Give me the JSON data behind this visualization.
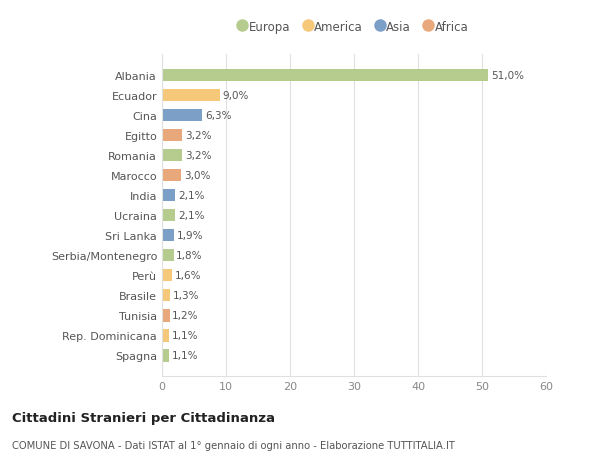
{
  "categories": [
    "Albania",
    "Ecuador",
    "Cina",
    "Egitto",
    "Romania",
    "Marocco",
    "India",
    "Ucraina",
    "Sri Lanka",
    "Serbia/Montenegro",
    "Perù",
    "Brasile",
    "Tunisia",
    "Rep. Dominicana",
    "Spagna"
  ],
  "values": [
    51.0,
    9.0,
    6.3,
    3.2,
    3.2,
    3.0,
    2.1,
    2.1,
    1.9,
    1.8,
    1.6,
    1.3,
    1.2,
    1.1,
    1.1
  ],
  "labels": [
    "51,0%",
    "9,0%",
    "6,3%",
    "3,2%",
    "3,2%",
    "3,0%",
    "2,1%",
    "2,1%",
    "1,9%",
    "1,8%",
    "1,6%",
    "1,3%",
    "1,2%",
    "1,1%",
    "1,1%"
  ],
  "regions": [
    "Europa",
    "America",
    "Asia",
    "Africa",
    "Europa",
    "Africa",
    "Asia",
    "Europa",
    "Asia",
    "Europa",
    "America",
    "America",
    "Africa",
    "America",
    "Europa"
  ],
  "colors": {
    "Europa": "#b5cc8e",
    "America": "#f5c87a",
    "Asia": "#7b9fc7",
    "Africa": "#e8a87c"
  },
  "legend_order": [
    "Europa",
    "America",
    "Asia",
    "Africa"
  ],
  "title1": "Cittadini Stranieri per Cittadinanza",
  "title2": "COMUNE DI SAVONA - Dati ISTAT al 1° gennaio di ogni anno - Elaborazione TUTTITALIA.IT",
  "xlim": [
    0,
    60
  ],
  "xticks": [
    0,
    10,
    20,
    30,
    40,
    50,
    60
  ],
  "bg_color": "#ffffff",
  "grid_color": "#e0e0e0"
}
